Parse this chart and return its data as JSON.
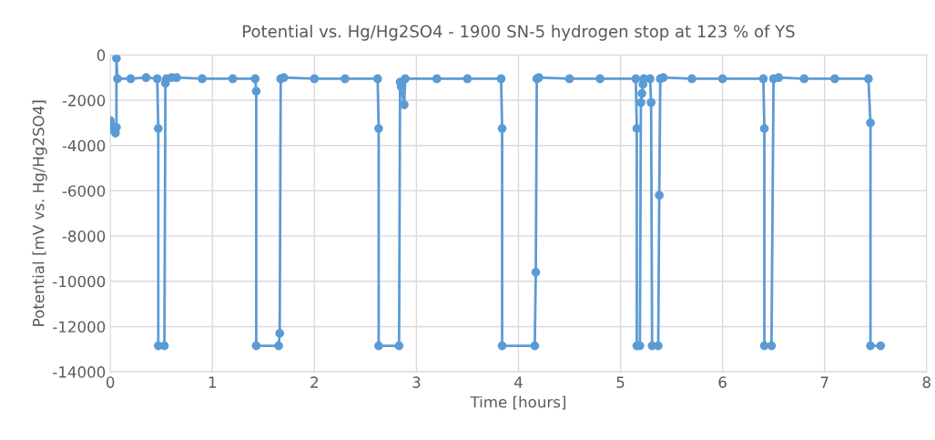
{
  "chart_data": {
    "type": "line",
    "title": "Potential vs. Hg/Hg2SO4 - 1900 SN-5 hydrogen stop at 123 % of YS",
    "xlabel": "Time [hours]",
    "ylabel": "Potential [mV vs. Hg/Hg2SO4]",
    "x": [
      0,
      0.01,
      0.02,
      0.04,
      0.05,
      0.06,
      0.06,
      0.07,
      0.2,
      0.35,
      0.46,
      0.47,
      0.47,
      0.53,
      0.54,
      0.55,
      0.6,
      0.65,
      0.9,
      1.2,
      1.42,
      1.43,
      1.43,
      1.65,
      1.66,
      1.67,
      1.7,
      2.0,
      2.3,
      2.62,
      2.63,
      2.63,
      2.83,
      2.84,
      2.85,
      2.88,
      2.89,
      3.2,
      3.5,
      3.83,
      3.84,
      3.84,
      4.16,
      4.17,
      4.18,
      4.2,
      4.5,
      4.8,
      5.15,
      5.16,
      5.16,
      5.19,
      5.2,
      5.21,
      5.22,
      5.23,
      5.29,
      5.3,
      5.31,
      5.37,
      5.38,
      5.39,
      5.42,
      5.7,
      6.0,
      6.4,
      6.41,
      6.41,
      6.48,
      6.5,
      6.55,
      6.8,
      7.1,
      7.43,
      7.45,
      7.45,
      7.55
    ],
    "series": [
      {
        "color": "#5b9bd5",
        "values": [
          -2900,
          -3100,
          -3300,
          -3250,
          -3450,
          -3200,
          -150,
          -1050,
          -1050,
          -1000,
          -1050,
          -3250,
          -12850,
          -12850,
          -1250,
          -1050,
          -1000,
          -1000,
          -1050,
          -1050,
          -1050,
          -1600,
          -12850,
          -12850,
          -12300,
          -1050,
          -1000,
          -1050,
          -1050,
          -1050,
          -3250,
          -12850,
          -12850,
          -1200,
          -1400,
          -2200,
          -1050,
          -1050,
          -1050,
          -1050,
          -3250,
          -12850,
          -12850,
          -9600,
          -1050,
          -1000,
          -1050,
          -1050,
          -1050,
          -3250,
          -12850,
          -12850,
          -2100,
          -1700,
          -1300,
          -1050,
          -1050,
          -2100,
          -12850,
          -12850,
          -6200,
          -1050,
          -1000,
          -1050,
          -1050,
          -1050,
          -3250,
          -12850,
          -12850,
          -1050,
          -1000,
          -1050,
          -1050,
          -1050,
          -3000,
          -12850,
          -12850
        ]
      }
    ],
    "xlim": [
      0,
      8
    ],
    "xticks": [
      0,
      1,
      2,
      3,
      4,
      5,
      6,
      7,
      8
    ],
    "ylim": [
      -14000,
      0
    ],
    "yticks": [
      -14000,
      -12000,
      -10000,
      -8000,
      -6000,
      -4000,
      -2000,
      0
    ],
    "grid": true,
    "marker": "circle",
    "line_style": "solid"
  }
}
